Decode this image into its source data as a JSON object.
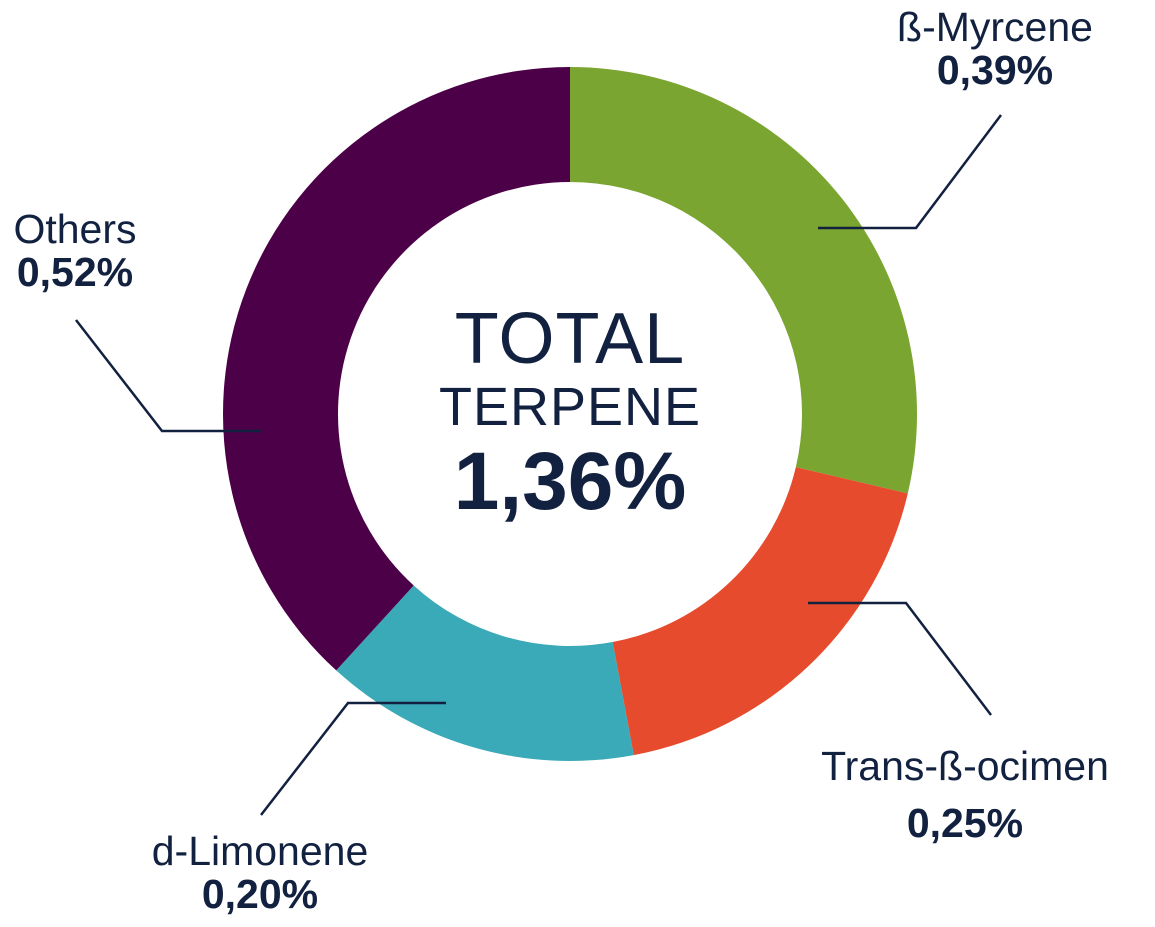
{
  "chart_data": {
    "type": "pie",
    "donut": true,
    "center": {
      "title": "TOTAL",
      "subtitle": "TERPENE",
      "value": "1,36%"
    },
    "slices": [
      {
        "label": "ß-Myrcene",
        "value": 0.39,
        "value_label": "0,39%",
        "color": "#7aa530"
      },
      {
        "label": "Trans-ß-ocimen",
        "value": 0.25,
        "value_label": "0,25%",
        "color": "#e64b2d"
      },
      {
        "label": "d-Limonene",
        "value": 0.2,
        "value_label": "0,20%",
        "color": "#3aa9b8"
      },
      {
        "label": "Others",
        "value": 0.52,
        "value_label": "0,52%",
        "color": "#4b0047"
      }
    ],
    "total": 1.36,
    "start_angle": "12 o'clock",
    "direction": "clockwise",
    "text_color": "#12213f"
  }
}
